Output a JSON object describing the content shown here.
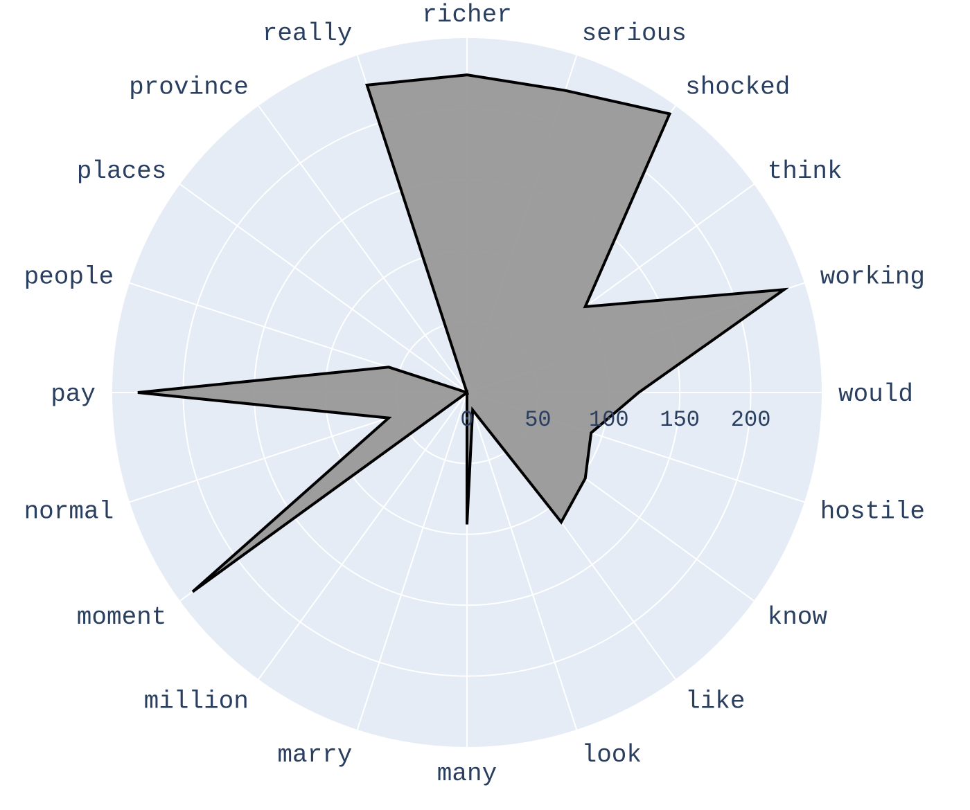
{
  "chart_data": {
    "type": "radar",
    "title": "",
    "categories": [
      "would",
      "working",
      "think",
      "shocked",
      "serious",
      "richer",
      "really",
      "province",
      "places",
      "people",
      "pay",
      "normal",
      "moment",
      "million",
      "marry",
      "many",
      "look",
      "like",
      "know",
      "hostile"
    ],
    "series": [
      {
        "values": [
          121,
          235,
          103,
          243,
          224,
          224,
          228,
          0,
          0,
          58,
          232,
          58,
          239,
          0,
          0,
          93,
          13,
          113,
          103,
          92
        ]
      }
    ],
    "radial_axis": {
      "range": [
        0,
        250
      ],
      "tickvals": [
        0,
        50,
        100,
        150,
        200
      ],
      "ticktext": [
        "0",
        "50",
        "100",
        "150",
        "200"
      ]
    },
    "colors": {
      "background": "#e5ecf6",
      "grid": "#ffffff",
      "fill": "#999999",
      "line": "#000000",
      "text": "#2a3f5f"
    }
  }
}
